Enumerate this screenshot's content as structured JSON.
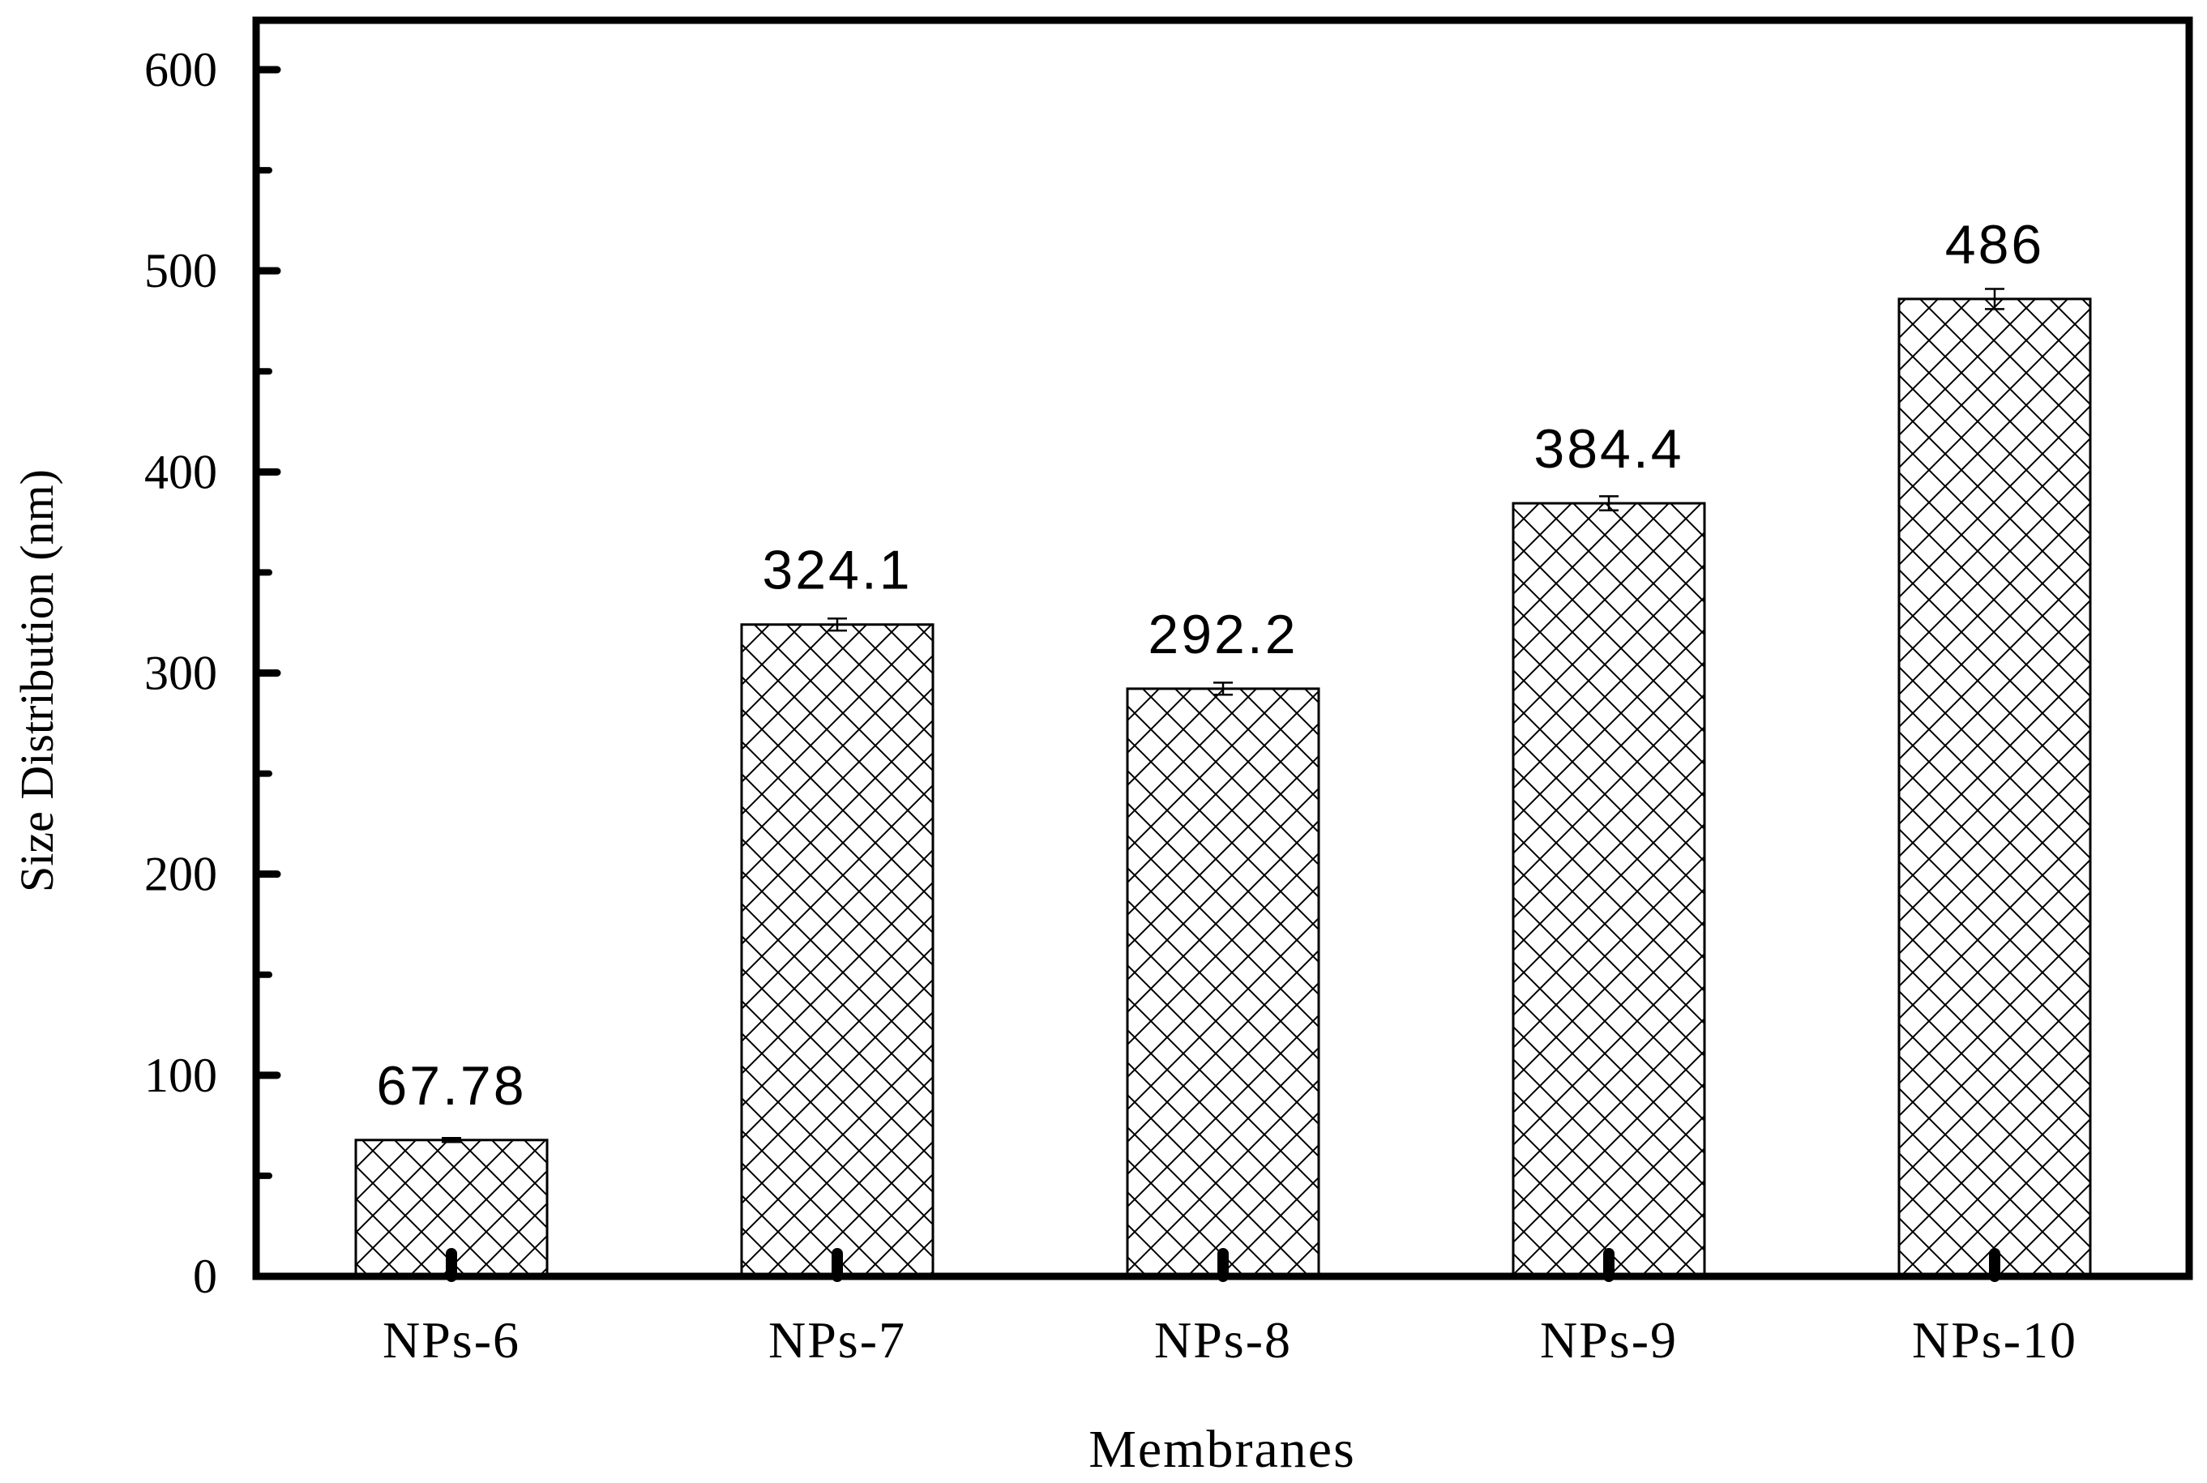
{
  "chart_data": {
    "type": "bar",
    "title": "",
    "xlabel": "Membranes",
    "ylabel": "Size Distribution (nm)",
    "categories": [
      "NPs-6",
      "NPs-7",
      "NPs-8",
      "NPs-9",
      "NPs-10"
    ],
    "values": [
      67.78,
      324.1,
      292.2,
      384.4,
      486
    ],
    "value_labels": [
      "67.78",
      "324.1",
      "292.2",
      "384.4",
      "486"
    ],
    "errors": [
      1,
      3,
      3,
      3.5,
      5
    ],
    "ylim": [
      0,
      600
    ],
    "yticks": [
      0,
      100,
      200,
      300,
      400,
      500,
      600
    ],
    "ytick_labels": [
      "0",
      "100",
      "200",
      "300",
      "400",
      "500",
      "600"
    ],
    "minor_yticks": [
      50,
      150,
      250,
      350,
      450,
      550
    ],
    "grid": false,
    "bar_pattern": "crosshatch",
    "colors": {
      "bar_fill": "#ffffff",
      "bar_stroke": "#000000",
      "hatch": "#000000",
      "axis": "#000000"
    }
  }
}
